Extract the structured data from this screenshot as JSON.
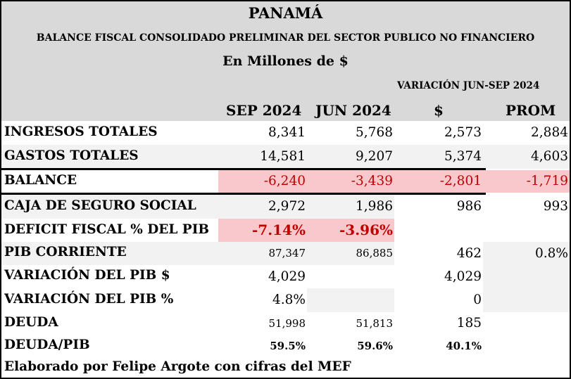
{
  "header": {
    "country": "PANAMÁ",
    "subtitle": "BALANCE FISCAL CONSOLIDADO PRELIMINAR DEL SECTOR PUBLICO NO FINANCIERO",
    "units": "En Millones de $",
    "variation_title": "VARIACIÓN JUN-SEP 2024"
  },
  "columns": [
    "SEP 2024",
    "JUN 2024",
    "$",
    "PROM"
  ],
  "rows": [
    {
      "label": "INGRESOS TOTALES",
      "sep": "8,341",
      "jun": "5,768",
      "var": "2,573",
      "prom": "2,884"
    },
    {
      "label": "GASTOS TOTALES",
      "sep": "14,581",
      "jun": "9,207",
      "var": "5,374",
      "prom": "4,603"
    },
    {
      "label": "BALANCE",
      "sep": "-6,240",
      "jun": "-3,439",
      "var": "-2,801",
      "prom": "-1,719"
    },
    {
      "label": "CAJA DE SEGURO SOCIAL",
      "sep": "2,972",
      "jun": "1,986",
      "var": "986",
      "prom": "993"
    },
    {
      "label": "DEFICIT FISCAL % DEL PIB",
      "sep": "-7.14%",
      "jun": "-3.96%",
      "var": "",
      "prom": ""
    },
    {
      "label": "PIB CORRIENTE",
      "sep": "87,347",
      "jun": "86,885",
      "var": "462",
      "prom": "0.8%"
    },
    {
      "label": "VARIACIÓN DEL PIB $",
      "sep": "4,029",
      "jun": "",
      "var": "4,029",
      "prom": ""
    },
    {
      "label": "VARIACIÓN DEL PIB %",
      "sep": "4.8%",
      "jun": "",
      "var": "0",
      "prom": ""
    },
    {
      "label": "DEUDA",
      "sep": "51,998",
      "jun": "51,813",
      "var": "185",
      "prom": ""
    },
    {
      "label": "DEUDA/PIB",
      "sep": "59.5%",
      "jun": "59.6%",
      "var": "40.1%",
      "prom": ""
    }
  ],
  "footer": "Elaborado por Felipe Argote con cifras del MEF",
  "colors": {
    "header_bg": "#d9d9d9",
    "highlight_pink": "#f9c8cc",
    "negative_red": "#c00000",
    "alt_row_grey": "#f2f2f2"
  }
}
